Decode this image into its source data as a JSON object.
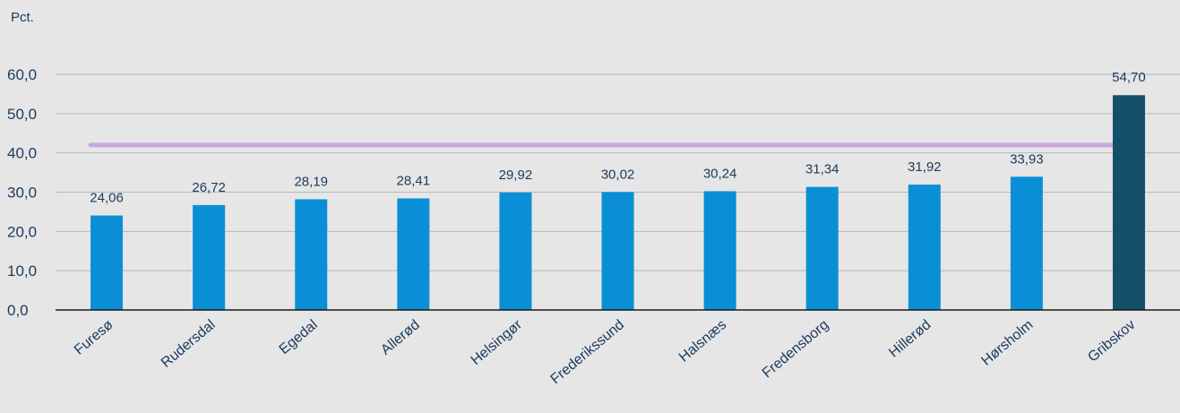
{
  "chart_data": {
    "type": "bar",
    "ylabel": "Pct.",
    "categories": [
      "Furesø",
      "Rudersdal",
      "Egedal",
      "Allerød",
      "Helsingør",
      "Frederikssund",
      "Halsnæs",
      "Fredensborg",
      "Hillerød",
      "Hørsholm",
      "Gribskov"
    ],
    "values": [
      24.06,
      26.72,
      28.19,
      28.41,
      29.92,
      30.02,
      30.24,
      31.34,
      31.92,
      33.93,
      54.7
    ],
    "value_labels": [
      "24,06",
      "26,72",
      "28,19",
      "28,41",
      "29,92",
      "30,02",
      "30,24",
      "31,34",
      "31,92",
      "33,93",
      "54,70"
    ],
    "highlight_index": 10,
    "reference_line": 42.0,
    "ylim": [
      0,
      60
    ],
    "yticks": [
      0,
      10,
      20,
      30,
      40,
      50,
      60
    ],
    "ytick_labels": [
      "0,0",
      "10,0",
      "20,0",
      "30,0",
      "40,0",
      "50,0",
      "60,0"
    ],
    "grid": true,
    "colors": {
      "bar": "#0a8fd6",
      "highlight": "#144f6a",
      "reference_line": "#c9a8de",
      "grid": "#b8b8b8",
      "axis": "#1a1a1a",
      "text": "#1b3a5c",
      "background": "#e6e6e6"
    }
  }
}
